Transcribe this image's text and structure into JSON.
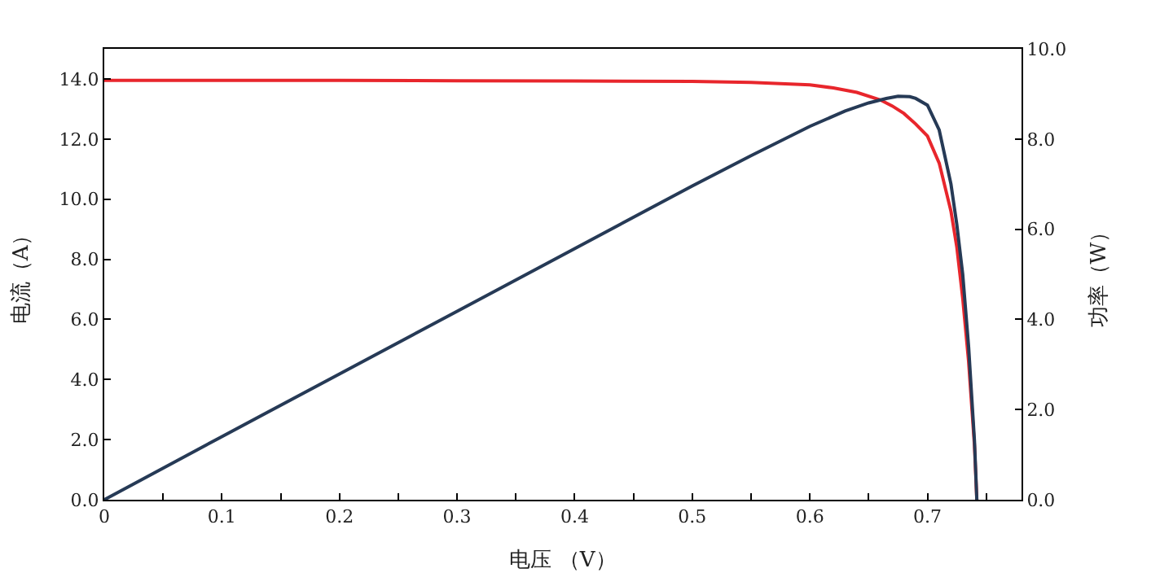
{
  "chart_data": {
    "type": "line",
    "xlabel": "电压 （V）",
    "ylabel": "电流（A）",
    "y2label": "功率（W）",
    "xlim": [
      0,
      0.78
    ],
    "ylim": [
      0,
      15
    ],
    "y2lim": [
      0,
      10
    ],
    "xticks": [
      0,
      {
        "value": 0.05,
        "label": null
      },
      0.1,
      {
        "value": 0.15,
        "label": null
      },
      0.2,
      {
        "value": 0.25,
        "label": null
      },
      0.3,
      {
        "value": 0.35,
        "label": null
      },
      0.4,
      {
        "value": 0.45,
        "label": null
      },
      0.5,
      {
        "value": 0.55,
        "label": null
      },
      0.6,
      {
        "value": 0.65,
        "label": null
      },
      0.7,
      {
        "value": 0.75,
        "label": null
      }
    ],
    "yticks": [
      {
        "value": 0,
        "label": "0.0"
      },
      {
        "value": 2,
        "label": "2.0"
      },
      {
        "value": 4,
        "label": "4.0"
      },
      {
        "value": 6,
        "label": "6.0"
      },
      {
        "value": 8,
        "label": "8.0"
      },
      {
        "value": 10,
        "label": "10.0"
      },
      {
        "value": 12,
        "label": "12.0"
      },
      {
        "value": 14,
        "label": "14.0"
      }
    ],
    "y2ticks": [
      {
        "value": 0,
        "label": "0.0"
      },
      {
        "value": 2,
        "label": "2.0"
      },
      {
        "value": 4,
        "label": "4.0"
      },
      {
        "value": 6,
        "label": "6.0"
      },
      {
        "value": 8,
        "label": "8.0"
      },
      {
        "value": 10,
        "label": "10.0"
      }
    ],
    "marker": "none",
    "line_style": "solid",
    "series": [
      {
        "color": "#e8262c",
        "x": [
          0,
          0.1,
          0.2,
          0.3,
          0.4,
          0.5,
          0.55,
          0.6,
          0.62,
          0.64,
          0.66,
          0.67,
          0.68,
          0.69,
          0.7,
          0.71,
          0.72,
          0.725,
          0.73,
          0.735,
          0.74,
          0.742
        ],
        "values": [
          13.95,
          13.95,
          13.95,
          13.94,
          13.93,
          13.92,
          13.88,
          13.8,
          13.7,
          13.55,
          13.3,
          13.1,
          12.85,
          12.5,
          12.1,
          11.2,
          9.6,
          8.4,
          6.7,
          4.6,
          1.8,
          0
        ]
      },
      {
        "color": "#263a56",
        "axis": "y2",
        "x": [
          0,
          0.1,
          0.2,
          0.3,
          0.4,
          0.5,
          0.55,
          0.6,
          0.63,
          0.65,
          0.665,
          0.675,
          0.685,
          0.69,
          0.7,
          0.71,
          0.72,
          0.725,
          0.73,
          0.735,
          0.74,
          0.742
        ],
        "values": [
          0,
          1.4,
          2.79,
          4.18,
          5.57,
          6.96,
          7.63,
          8.28,
          8.62,
          8.8,
          8.9,
          8.95,
          8.94,
          8.9,
          8.75,
          8.2,
          7.0,
          6.1,
          5.0,
          3.4,
          1.3,
          0
        ]
      }
    ]
  }
}
